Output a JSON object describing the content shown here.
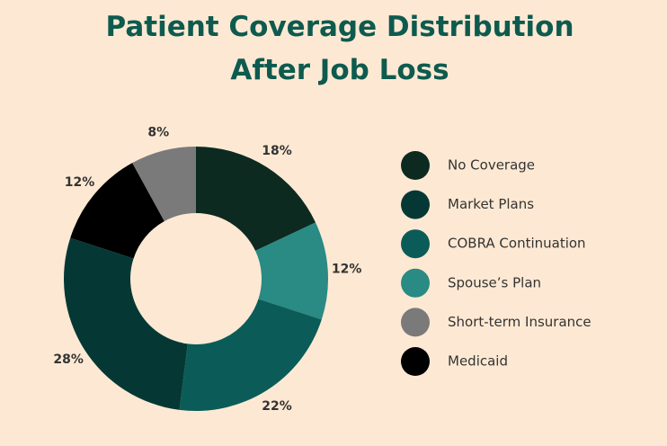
{
  "chart_data": {
    "type": "donut",
    "title": "Patient Coverage Distribution After Job Loss",
    "series": [
      {
        "name": "No Coverage",
        "color": "#0d2a20",
        "values": [
          18
        ],
        "value_labels": [
          "18%"
        ]
      },
      {
        "name": "Market Plans",
        "color": "#053835",
        "values": [
          28
        ],
        "value_labels": [
          "28%"
        ]
      },
      {
        "name": "COBRA Continuation",
        "color": "#0b5c58",
        "values": [
          22
        ],
        "value_labels": [
          "22%"
        ]
      },
      {
        "name": "Spouse’s Plan",
        "color": "#2a8a84",
        "values": [
          12
        ],
        "value_labels": [
          "12%"
        ]
      },
      {
        "name": "Short-term Insurance",
        "color": "#7a7a7a",
        "values": [
          8
        ],
        "value_labels": [
          "8%"
        ]
      },
      {
        "name": "Medicaid",
        "color": "#000000",
        "values": [
          12
        ],
        "value_labels": [
          "12%"
        ]
      }
    ]
  }
}
